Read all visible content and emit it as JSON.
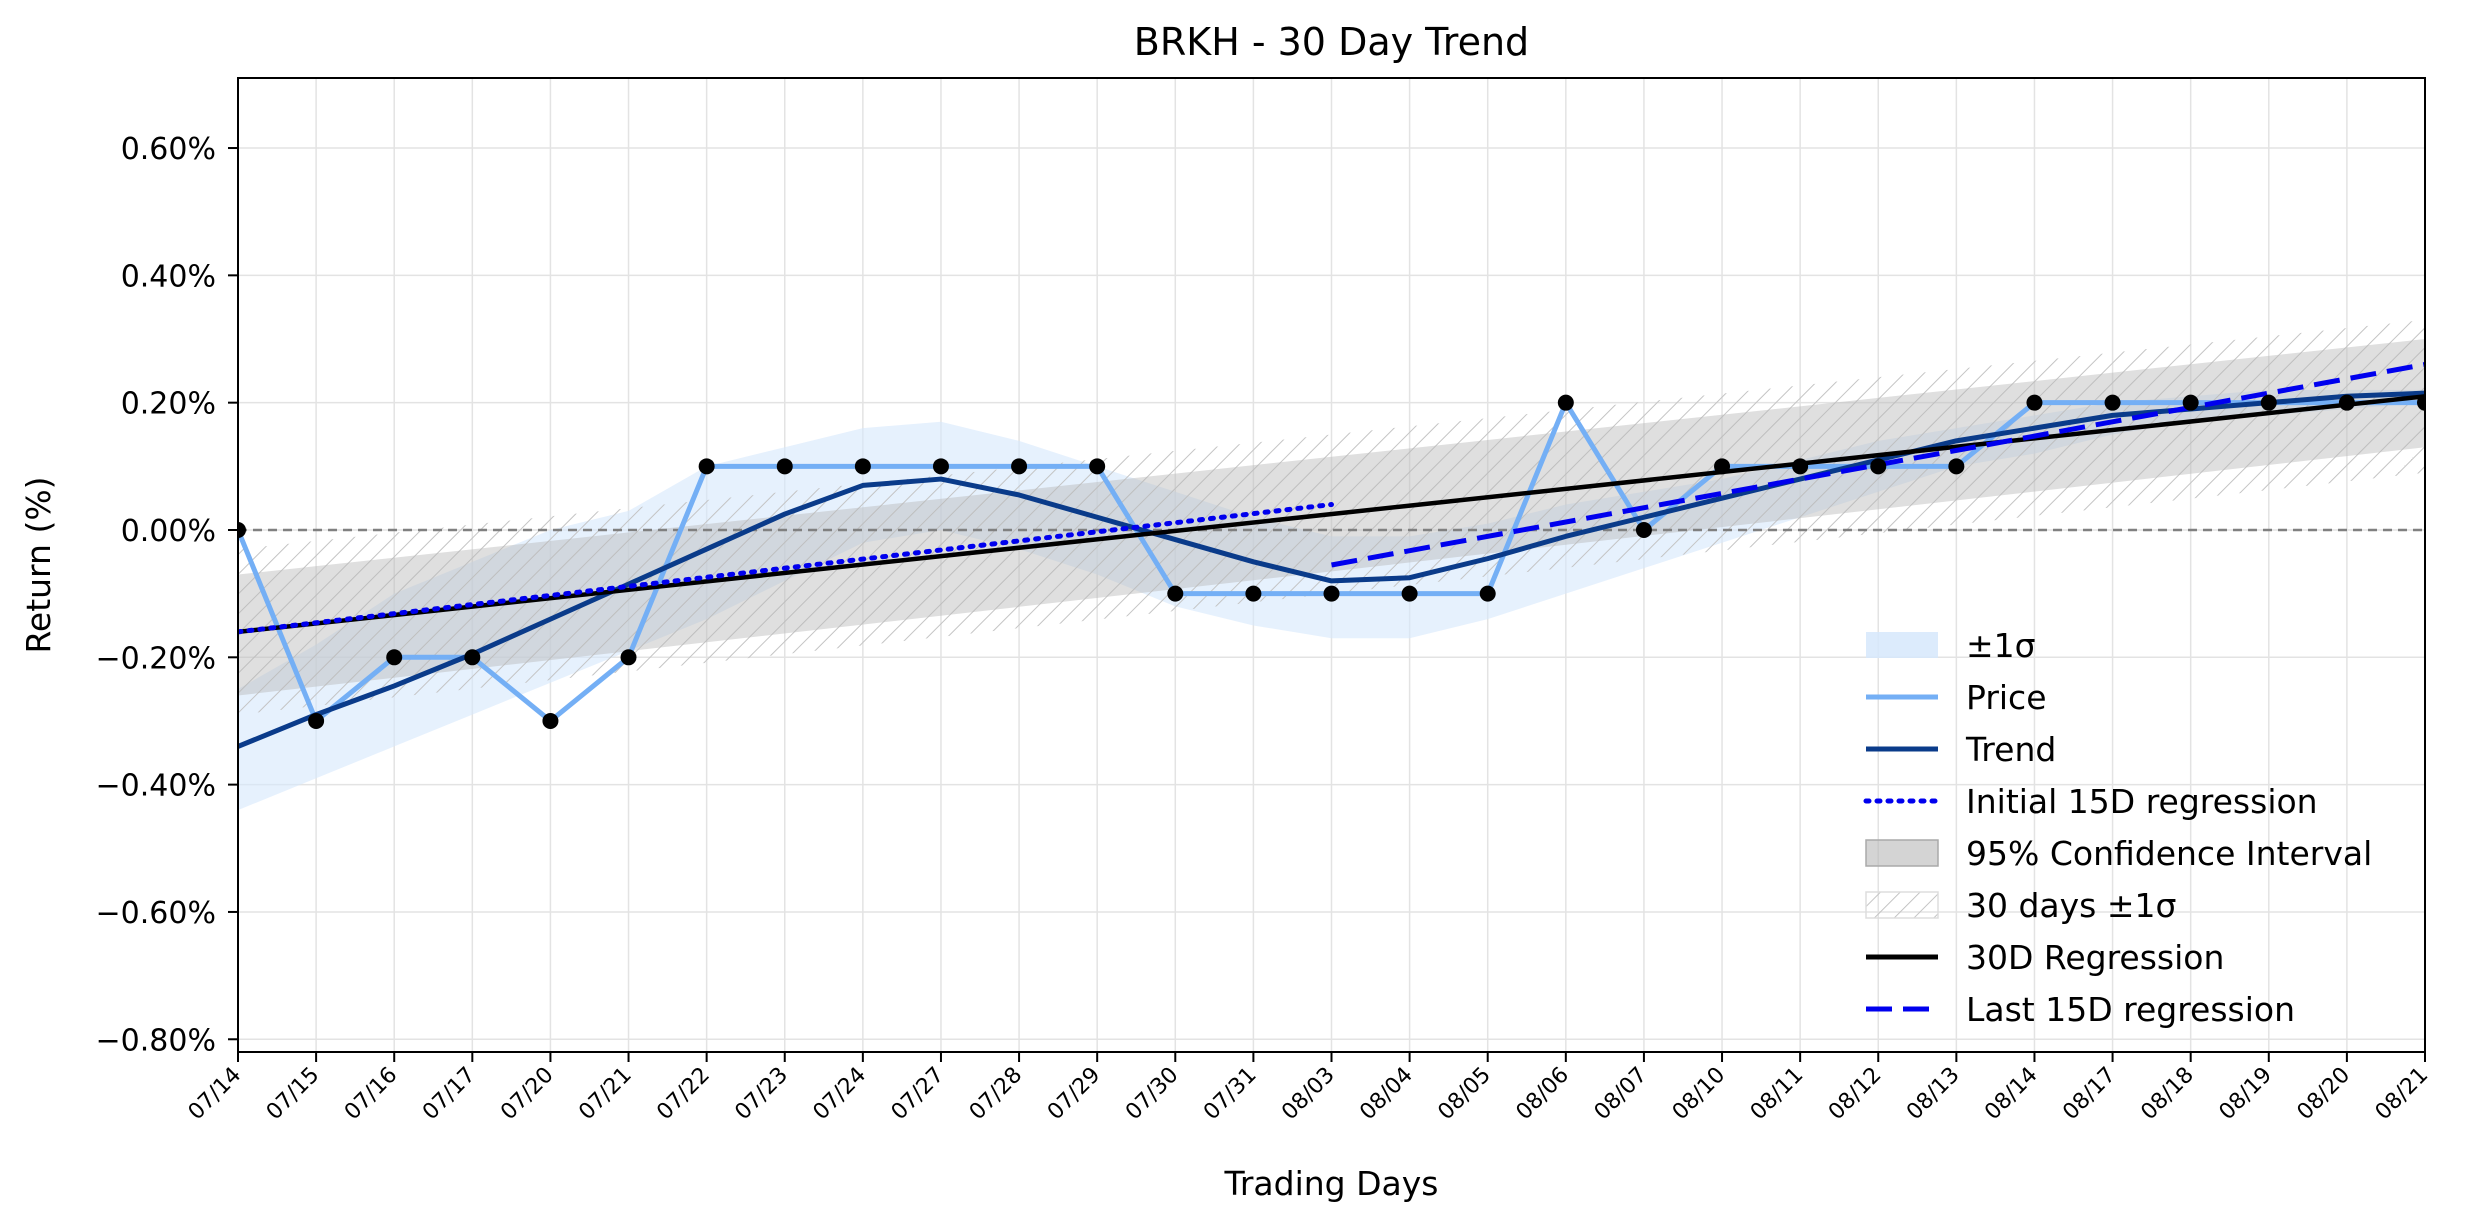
{
  "chart_data": {
    "type": "line",
    "title": "BRKH - 30 Day Trend",
    "xlabel": "Trading Days",
    "ylabel": "Return (%)",
    "ylim": [
      -0.82,
      0.71
    ],
    "yticks": [
      -0.8,
      -0.6,
      -0.4,
      -0.2,
      0.0,
      0.2,
      0.4,
      0.6
    ],
    "ytick_labels": [
      "−0.80%",
      "−0.60%",
      "−0.40%",
      "−0.20%",
      "0.00%",
      "0.20%",
      "0.40%",
      "0.60%"
    ],
    "grid": true,
    "legend_placement": "lower-right",
    "categories": [
      "07/14",
      "07/15",
      "07/16",
      "07/17",
      "07/20",
      "07/21",
      "07/22",
      "07/23",
      "07/24",
      "07/27",
      "07/28",
      "07/29",
      "07/30",
      "07/31",
      "08/03",
      "08/04",
      "08/05",
      "08/06",
      "08/07",
      "08/10",
      "08/11",
      "08/12",
      "08/13",
      "08/14",
      "08/17",
      "08/18",
      "08/19",
      "08/20",
      "08/21"
    ],
    "colors": {
      "price": "#74aff5",
      "trend": "#0a3b8a",
      "initial_regression": "#0000ee",
      "last_regression": "#0000ee",
      "regression_30d": "#000000",
      "sigma_band": "#d6e8fc",
      "ci_band": "#b8b8b8",
      "hatch": "#c8c8c8",
      "zero_line": "#808080",
      "markers": "#000000"
    },
    "series": [
      {
        "name": "Price",
        "key": "price",
        "values": [
          0.0,
          -0.3,
          -0.2,
          -0.2,
          -0.3,
          -0.2,
          0.1,
          0.1,
          0.1,
          0.1,
          0.1,
          0.1,
          -0.1,
          -0.1,
          -0.1,
          -0.1,
          -0.1,
          0.2,
          0.0,
          0.1,
          0.1,
          0.1,
          0.1,
          0.2,
          0.2,
          0.2,
          0.2,
          0.2,
          0.2
        ]
      },
      {
        "name": "Trend",
        "key": "trend",
        "values": [
          -0.34,
          -0.29,
          -0.245,
          -0.195,
          -0.14,
          -0.085,
          -0.03,
          0.025,
          0.07,
          0.08,
          0.055,
          0.02,
          -0.015,
          -0.05,
          -0.08,
          -0.075,
          -0.045,
          -0.01,
          0.02,
          0.05,
          0.08,
          0.11,
          0.14,
          0.16,
          0.18,
          0.19,
          0.2,
          0.21,
          0.215
        ]
      },
      {
        "name": "Initial 15D regression",
        "key": "initial_regression",
        "start": {
          "x": "07/14",
          "y": -0.16
        },
        "end": {
          "x": "08/03",
          "y": 0.04
        }
      },
      {
        "name": "Last 15D regression",
        "key": "last_regression",
        "start": {
          "x": "08/03",
          "y": -0.055
        },
        "end": {
          "x": "08/21",
          "y": 0.26
        }
      },
      {
        "name": "30D Regression",
        "key": "regression_30d",
        "start": {
          "x": "07/14",
          "y": -0.16
        },
        "end": {
          "x": "08/21",
          "y": 0.21
        }
      }
    ],
    "bands": [
      {
        "name": "±1σ",
        "key": "sigma_band",
        "upper": [
          -0.25,
          -0.18,
          -0.1,
          -0.05,
          0.0,
          0.03,
          0.1,
          0.13,
          0.16,
          0.17,
          0.14,
          0.1,
          0.06,
          0.02,
          -0.01,
          -0.01,
          0.01,
          0.04,
          0.06,
          0.08,
          0.11,
          0.14,
          0.16,
          0.18,
          0.2,
          0.21,
          0.22,
          0.22,
          0.22
        ],
        "lower": [
          -0.44,
          -0.39,
          -0.34,
          -0.29,
          -0.24,
          -0.19,
          -0.14,
          -0.08,
          -0.02,
          0.0,
          -0.03,
          -0.07,
          -0.12,
          -0.15,
          -0.17,
          -0.17,
          -0.14,
          -0.1,
          -0.06,
          -0.02,
          0.02,
          0.06,
          0.1,
          0.12,
          0.15,
          0.17,
          0.18,
          0.19,
          0.2
        ]
      },
      {
        "name": "95% Confidence Interval",
        "key": "ci_band",
        "start_upper": -0.07,
        "start_lower": -0.26,
        "end_upper": 0.3,
        "end_lower": 0.13
      },
      {
        "name": "30 days ±1σ",
        "key": "hatch_band",
        "start_upper": -0.03,
        "start_lower": -0.29,
        "end_upper": 0.33,
        "end_lower": 0.09
      }
    ],
    "legend": [
      "±1σ",
      "Price",
      "Trend",
      "Initial 15D regression",
      "95% Confidence Interval",
      "30 days ±1σ",
      "30D Regression",
      "Last 15D regression"
    ]
  }
}
